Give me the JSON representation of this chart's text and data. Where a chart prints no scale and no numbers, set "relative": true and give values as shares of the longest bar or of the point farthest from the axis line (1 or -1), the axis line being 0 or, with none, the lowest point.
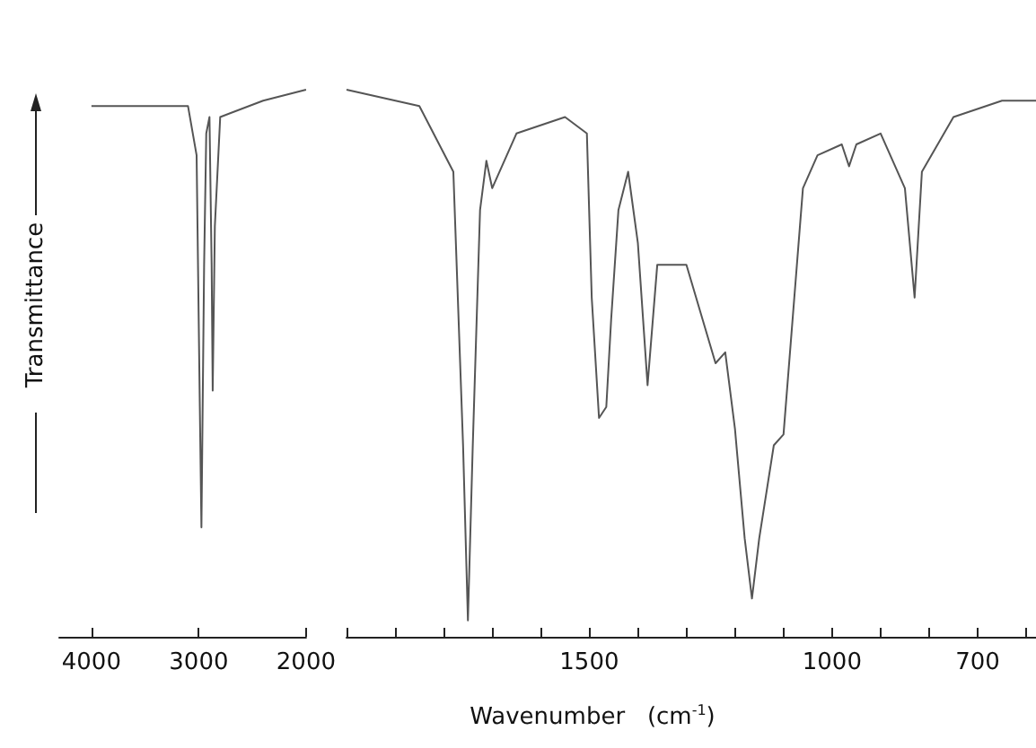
{
  "chart_data": [
    {
      "type": "line",
      "relative": true,
      "ylabel": "Transmittance",
      "x": [
        4000,
        3100,
        3020,
        2990,
        2975,
        2950,
        2930,
        2900,
        2880,
        2870,
        2850,
        2800,
        2400,
        2000
      ],
      "series": [
        {
          "color": "#555555",
          "values": [
            0.97,
            0.97,
            0.88,
            0.42,
            0.2,
            0.68,
            0.92,
            0.95,
            0.68,
            0.45,
            0.75,
            0.95,
            0.98,
            1
          ]
        }
      ],
      "xlim": [
        4300,
        2000
      ],
      "xticks": [
        4000,
        3000,
        2000
      ]
    },
    {
      "type": "line",
      "relative": true,
      "xlabel": "Wavenumber   (cm$^{-1}$)",
      "x": [
        2000,
        1850,
        1780,
        1760,
        1750,
        1740,
        1725,
        1712,
        1700,
        1650,
        1550,
        1505,
        1495,
        1480,
        1465,
        1455,
        1440,
        1420,
        1400,
        1380,
        1360,
        1300,
        1240,
        1220,
        1200,
        1180,
        1165,
        1150,
        1120,
        1100,
        1060,
        1030,
        980,
        965,
        950,
        900,
        850,
        830,
        815,
        750,
        650,
        580
      ],
      "series": [
        {
          "color": "#555555",
          "values": [
            1,
            0.97,
            0.85,
            0.35,
            0.03,
            0.35,
            0.78,
            0.87,
            0.82,
            0.92,
            0.95,
            0.92,
            0.62,
            0.4,
            0.42,
            0.58,
            0.78,
            0.85,
            0.72,
            0.46,
            0.68,
            0.68,
            0.5,
            0.52,
            0.38,
            0.18,
            0.07,
            0.18,
            0.35,
            0.37,
            0.82,
            0.88,
            0.9,
            0.86,
            0.9,
            0.92,
            0.82,
            0.62,
            0.85,
            0.95,
            0.98,
            0.98
          ]
        }
      ],
      "xlim": [
        2000,
        580
      ],
      "xticks": [
        {
          "value": 2000,
          "label": null
        },
        {
          "value": 1900,
          "label": null
        },
        {
          "value": 1800,
          "label": null
        },
        {
          "value": 1700,
          "label": null
        },
        {
          "value": 1600,
          "label": null
        },
        1500,
        {
          "value": 1400,
          "label": null
        },
        {
          "value": 1300,
          "label": null
        },
        {
          "value": 1200,
          "label": null
        },
        {
          "value": 1100,
          "label": null
        },
        1000,
        {
          "value": 900,
          "label": null
        },
        {
          "value": 800,
          "label": null
        },
        700,
        {
          "value": 600,
          "label": null
        }
      ]
    }
  ]
}
